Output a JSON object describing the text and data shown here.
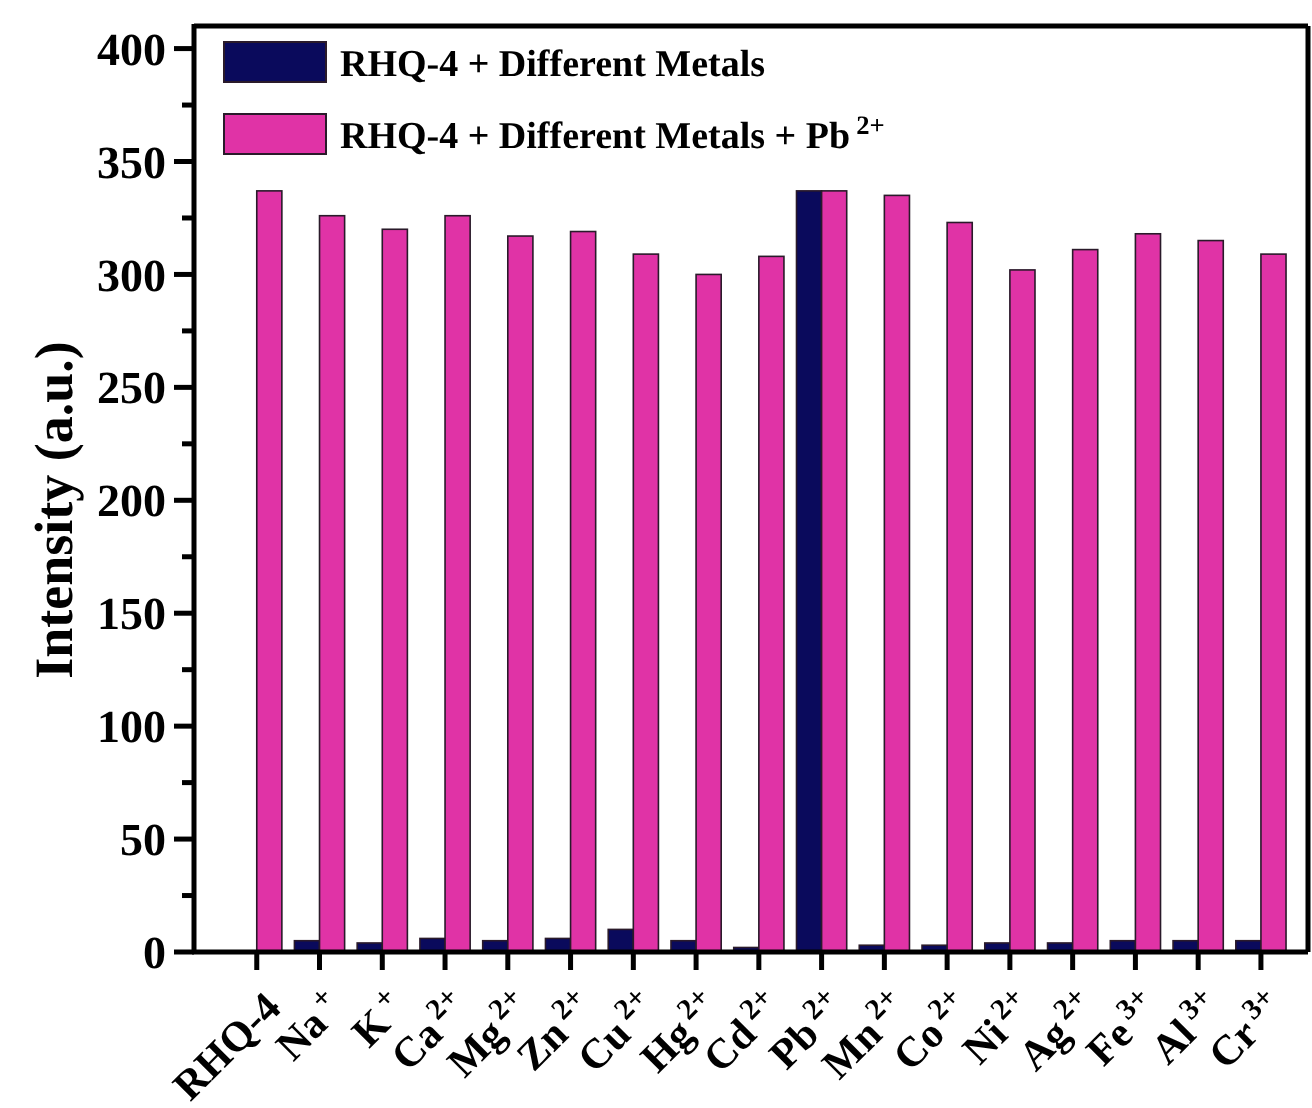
{
  "chart_data": {
    "type": "bar",
    "ylabel": "Intensity (a.u.)",
    "categories": [
      "RHQ-4",
      "Na$^{+}$",
      "K$^{+}$",
      "Ca$^{2+}$",
      "Mg$^{2+}$",
      "Zn$^{2+}$",
      "Cu$^{2+}$",
      "Hg$^{2+}$",
      "Cd$^{2+}$",
      "Pb$^{2+}$",
      "Mn$^{2+}$",
      "Co$^{2+}$",
      "Ni$^{2+}$",
      "Ag$^{2+}$",
      "Fe$^{3+}$",
      "Al$^{3+}$",
      "Cr$^{3+}$"
    ],
    "series": [
      {
        "name": "RHQ-4 + Different Metals",
        "color": "#0a0a5c",
        "values": [
          null,
          5,
          4,
          6,
          5,
          6,
          10,
          5,
          2,
          337,
          3,
          3,
          4,
          4,
          5,
          5,
          5
        ]
      },
      {
        "name": "RHQ-4 + Different Metals + Pb$^{2+}$",
        "color": "#e033a6",
        "values": [
          337,
          326,
          320,
          326,
          317,
          319,
          309,
          300,
          308,
          337,
          335,
          323,
          302,
          311,
          318,
          315,
          309
        ]
      }
    ],
    "ylim": [
      0,
      410
    ],
    "yticks": [
      0,
      {
        "value": 25,
        "label": null
      },
      50,
      {
        "value": 75,
        "label": null
      },
      100,
      {
        "value": 125,
        "label": null
      },
      150,
      {
        "value": 175,
        "label": null
      },
      200,
      {
        "value": 225,
        "label": null
      },
      250,
      {
        "value": 275,
        "label": null
      },
      300,
      {
        "value": 325,
        "label": null
      },
      350,
      {
        "value": 375,
        "label": null
      },
      400
    ],
    "legend": "top left"
  }
}
